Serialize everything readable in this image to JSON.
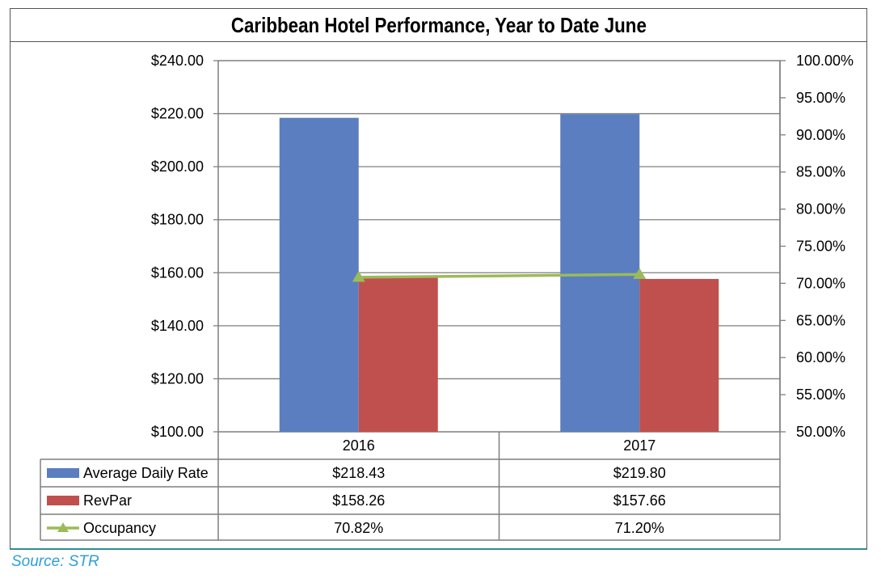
{
  "title": "Caribbean Hotel Performance, Year to Date June",
  "source": "Source: STR",
  "colors": {
    "adr": "#5a7ebf",
    "revpar": "#c0504d",
    "occupancy": "#9bbb59",
    "grid": "#7f7f7f"
  },
  "chart_data": {
    "type": "bar",
    "categories": [
      "2016",
      "2017"
    ],
    "series": [
      {
        "name": "Average Daily Rate",
        "type": "bar",
        "axis": "left",
        "values": [
          218.43,
          219.8
        ],
        "labels": [
          "$218.43",
          "$219.80"
        ]
      },
      {
        "name": "RevPar",
        "type": "bar",
        "axis": "left",
        "values": [
          158.26,
          157.66
        ],
        "labels": [
          "$158.26",
          "$157.66"
        ]
      },
      {
        "name": "Occupancy",
        "type": "line",
        "axis": "right",
        "values": [
          70.82,
          71.2
        ],
        "labels": [
          "70.82%",
          "71.20%"
        ]
      }
    ],
    "ylim_left": [
      100,
      240
    ],
    "yticks_left": [
      "$240.00",
      "$220.00",
      "$200.00",
      "$180.00",
      "$160.00",
      "$140.00",
      "$120.00",
      "$100.00"
    ],
    "ylim_right": [
      50,
      100
    ],
    "yticks_right": [
      "100.00%",
      "95.00%",
      "90.00%",
      "85.00%",
      "80.00%",
      "75.00%",
      "70.00%",
      "65.00%",
      "60.00%",
      "55.00%",
      "50.00%"
    ],
    "grid": true,
    "legend": "data-table-below"
  }
}
